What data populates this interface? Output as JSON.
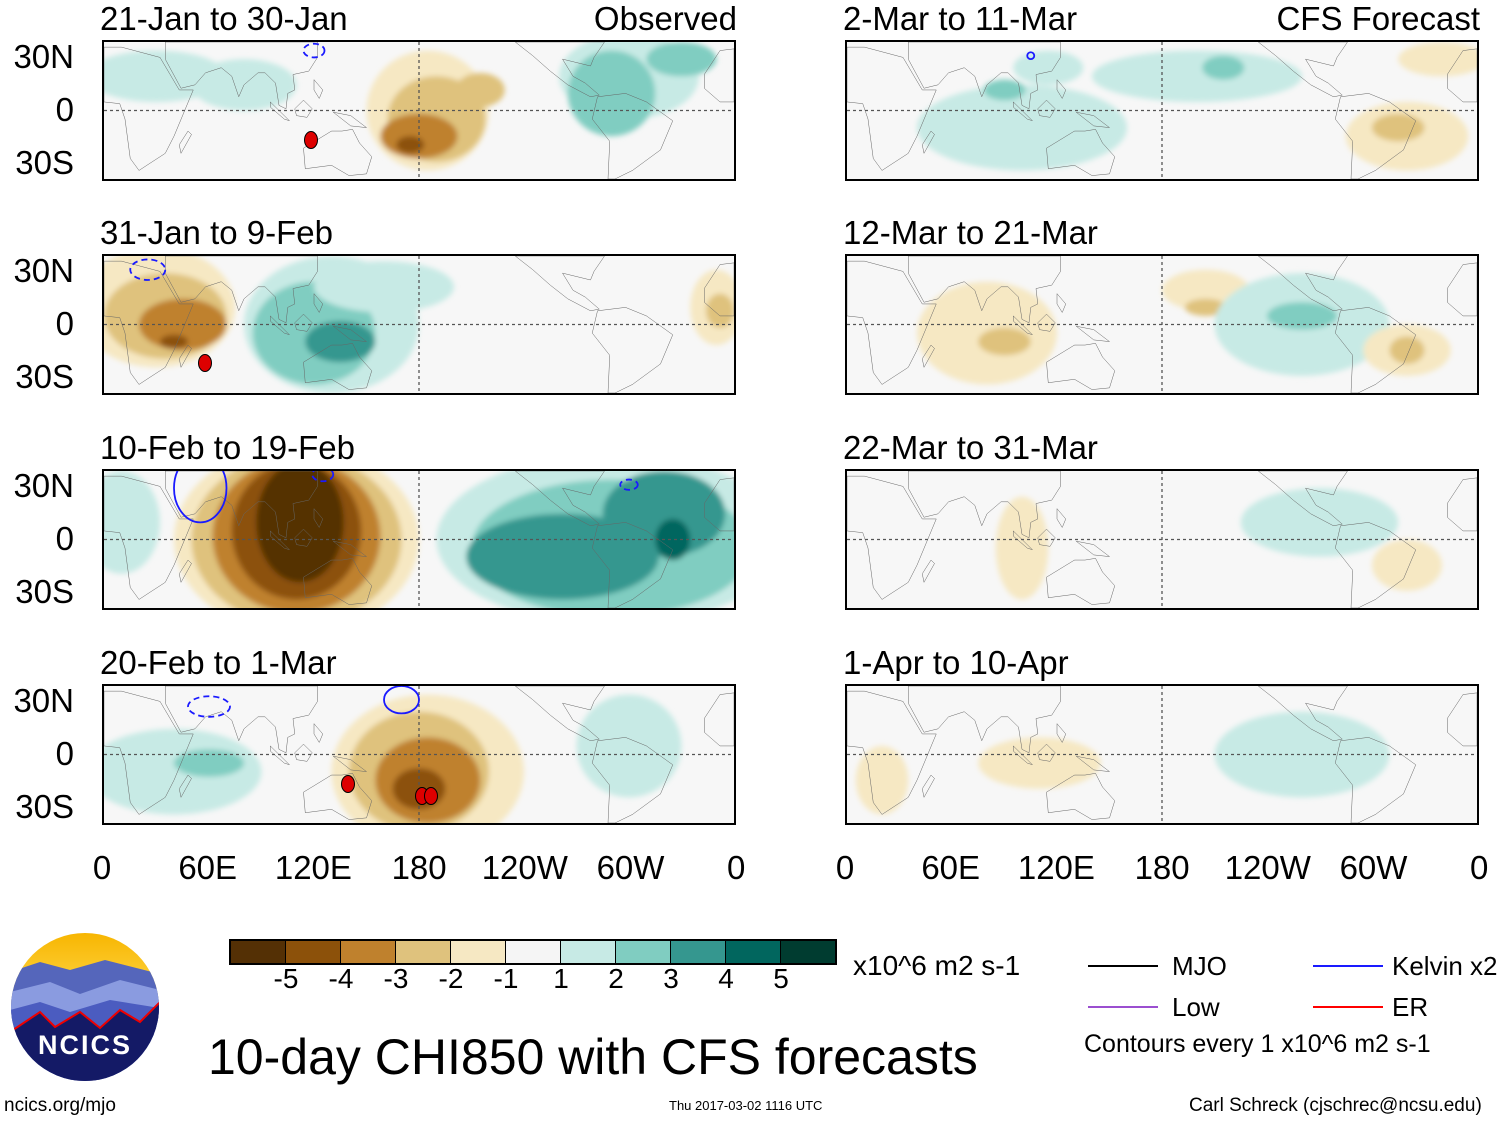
{
  "panels_left": [
    {
      "title": "21-Jan to 30-Jan",
      "label": "Observed"
    },
    {
      "title": "31-Jan to 9-Feb"
    },
    {
      "title": "10-Feb to 19-Feb"
    },
    {
      "title": "20-Feb to 1-Mar"
    }
  ],
  "panels_right": [
    {
      "title": "2-Mar to 11-Mar",
      "label": "CFS Forecast"
    },
    {
      "title": "12-Mar to 21-Mar"
    },
    {
      "title": "22-Mar to 31-Mar"
    },
    {
      "title": "1-Apr to 10-Apr"
    }
  ],
  "lat_labels": [
    "30N",
    "0",
    "30S"
  ],
  "lon_labels": [
    "0",
    "60E",
    "120E",
    "180",
    "120W",
    "60W",
    "0"
  ],
  "colorbar": {
    "labels": [
      "-5",
      "-4",
      "-3",
      "-2",
      "-1",
      "1",
      "2",
      "3",
      "4",
      "5"
    ],
    "colors": [
      "#543005",
      "#8c510a",
      "#bf812d",
      "#dfc27d",
      "#f6e8c3",
      "#f5f5f5",
      "#c7eae5",
      "#80cdc1",
      "#35978f",
      "#01665e",
      "#003c30"
    ],
    "units": "x10^6 m2 s-1"
  },
  "legend": {
    "mjo": "MJO",
    "low": "Low",
    "kelvin": "Kelvin x2",
    "er": "ER",
    "contours": "Contours every 1 x10^6 m2 s-1",
    "colors": {
      "mjo": "#000000",
      "low": "#9b4fd0",
      "kelvin": "#1a1aff",
      "er": "#ff0000"
    }
  },
  "title": "10-day CHI850 with CFS forecasts",
  "logo_text": "NCICS",
  "footer": {
    "url": "ncics.org/mjo",
    "timestamp": "Thu 2017-03-02 1116 UTC",
    "author": "Carl Schreck (cjschrec@ncsu.edu)"
  }
}
